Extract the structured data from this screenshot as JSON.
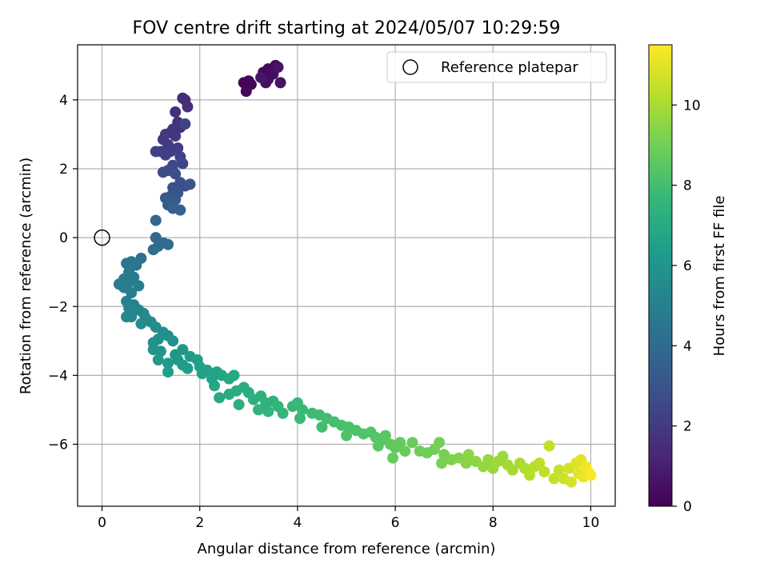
{
  "chart_data": {
    "type": "scatter",
    "title": "FOV centre drift starting at 2024/05/07 10:29:59",
    "xlabel": "Angular distance from reference (arcmin)",
    "ylabel": "Rotation from reference (arcmin)",
    "xlim": [
      -0.5,
      10.5
    ],
    "ylim": [
      -7.8,
      5.6
    ],
    "xticks": [
      0,
      2,
      4,
      6,
      8,
      10
    ],
    "yticks": [
      -6,
      -4,
      -2,
      0,
      2,
      4
    ],
    "grid": true,
    "legend": {
      "position": "top-right",
      "entries": [
        {
          "label": "Reference platepar",
          "marker": "hollow-circle"
        }
      ]
    },
    "reference_point": {
      "x": 0,
      "y": 0
    },
    "colorbar": {
      "label": "Hours from first FF file",
      "range": [
        0,
        11.5
      ],
      "ticks": [
        0,
        2,
        4,
        6,
        8,
        10
      ],
      "colormap": "viridis",
      "colors": [
        "#440154",
        "#482878",
        "#3e4989",
        "#31688e",
        "#26828e",
        "#1f9e89",
        "#35b779",
        "#6ece58",
        "#b5de2b",
        "#fde725"
      ]
    },
    "series": [
      {
        "points": [
          [
            2.9,
            4.5,
            0.05
          ],
          [
            3.0,
            4.55,
            0.1
          ],
          [
            3.05,
            4.45,
            0.15
          ],
          [
            2.95,
            4.25,
            0.2
          ],
          [
            3.3,
            4.8,
            0.25
          ],
          [
            3.4,
            4.9,
            0.3
          ],
          [
            3.55,
            5.0,
            0.35
          ],
          [
            3.5,
            4.75,
            0.4
          ],
          [
            3.4,
            4.6,
            0.45
          ],
          [
            3.35,
            4.5,
            0.5
          ],
          [
            3.65,
            4.5,
            0.55
          ],
          [
            3.6,
            4.95,
            0.6
          ],
          [
            3.25,
            4.65,
            0.65
          ],
          [
            1.65,
            4.05,
            1.4
          ],
          [
            1.7,
            4.0,
            1.45
          ],
          [
            1.75,
            3.8,
            1.5
          ],
          [
            1.5,
            3.65,
            1.6
          ],
          [
            1.55,
            3.35,
            1.65
          ],
          [
            1.6,
            3.2,
            1.7
          ],
          [
            1.45,
            3.15,
            1.75
          ],
          [
            1.4,
            3.05,
            1.8
          ],
          [
            1.3,
            3.0,
            1.85
          ],
          [
            1.5,
            2.95,
            1.9
          ],
          [
            1.25,
            2.85,
            1.95
          ],
          [
            1.35,
            2.7,
            2.0
          ],
          [
            1.55,
            2.6,
            2.05
          ],
          [
            1.4,
            2.5,
            2.1
          ],
          [
            1.2,
            2.5,
            2.15
          ],
          [
            1.1,
            2.5,
            2.2
          ],
          [
            1.3,
            2.4,
            2.25
          ],
          [
            1.6,
            2.35,
            2.3
          ],
          [
            1.7,
            3.3,
            2.35
          ],
          [
            1.65,
            2.15,
            2.4
          ],
          [
            1.45,
            2.1,
            2.5
          ],
          [
            1.35,
            1.95,
            2.6
          ],
          [
            1.25,
            1.9,
            2.7
          ],
          [
            1.5,
            1.85,
            2.75
          ],
          [
            1.6,
            1.6,
            2.8
          ],
          [
            1.7,
            1.5,
            2.85
          ],
          [
            1.45,
            1.45,
            2.9
          ],
          [
            1.8,
            1.55,
            2.95
          ],
          [
            1.55,
            1.3,
            3.0
          ],
          [
            1.4,
            1.2,
            3.1
          ],
          [
            1.3,
            1.15,
            3.2
          ],
          [
            1.5,
            1.1,
            3.3
          ],
          [
            1.35,
            0.95,
            3.4
          ],
          [
            1.45,
            0.85,
            3.5
          ],
          [
            1.6,
            0.8,
            3.6
          ],
          [
            1.1,
            0.5,
            3.75
          ],
          [
            1.1,
            0.0,
            3.9
          ],
          [
            1.25,
            -0.15,
            4.0
          ],
          [
            1.35,
            -0.2,
            4.05
          ],
          [
            1.15,
            -0.25,
            4.1
          ],
          [
            1.05,
            -0.35,
            4.15
          ],
          [
            0.8,
            -0.6,
            4.3
          ],
          [
            0.6,
            -0.7,
            4.4
          ],
          [
            0.5,
            -0.75,
            4.45
          ],
          [
            0.7,
            -0.8,
            4.5
          ],
          [
            0.55,
            -1.0,
            4.6
          ],
          [
            0.65,
            -1.15,
            4.7
          ],
          [
            0.45,
            -1.2,
            4.75
          ],
          [
            0.55,
            -1.3,
            4.8
          ],
          [
            0.35,
            -1.35,
            4.85
          ],
          [
            0.45,
            -1.45,
            4.9
          ],
          [
            0.75,
            -1.4,
            4.95
          ],
          [
            0.6,
            -1.6,
            5.0
          ],
          [
            0.5,
            -1.85,
            5.1
          ],
          [
            0.65,
            -1.95,
            5.15
          ],
          [
            0.55,
            -2.05,
            5.2
          ],
          [
            0.75,
            -2.1,
            5.25
          ],
          [
            0.85,
            -2.2,
            5.3
          ],
          [
            0.6,
            -2.3,
            5.35
          ],
          [
            0.5,
            -2.3,
            5.4
          ],
          [
            0.9,
            -2.35,
            5.45
          ],
          [
            1.0,
            -2.45,
            5.5
          ],
          [
            0.8,
            -2.5,
            5.55
          ],
          [
            1.1,
            -2.6,
            5.6
          ],
          [
            1.25,
            -2.75,
            5.65
          ],
          [
            1.35,
            -2.85,
            5.7
          ],
          [
            1.15,
            -2.95,
            5.75
          ],
          [
            1.45,
            -3.0,
            5.8
          ],
          [
            1.05,
            -3.05,
            5.85
          ],
          [
            1.05,
            -3.25,
            5.9
          ],
          [
            1.2,
            -3.3,
            5.95
          ],
          [
            1.5,
            -3.4,
            6.0
          ],
          [
            1.65,
            -3.25,
            6.05
          ],
          [
            1.55,
            -3.55,
            6.1
          ],
          [
            1.15,
            -3.55,
            6.15
          ],
          [
            1.35,
            -3.65,
            6.2
          ],
          [
            1.8,
            -3.45,
            6.25
          ],
          [
            1.65,
            -3.7,
            6.3
          ],
          [
            1.75,
            -3.8,
            6.35
          ],
          [
            1.35,
            -3.9,
            6.4
          ],
          [
            1.95,
            -3.55,
            6.45
          ],
          [
            2.0,
            -3.75,
            6.5
          ],
          [
            2.05,
            -3.95,
            6.55
          ],
          [
            2.15,
            -3.85,
            6.6
          ],
          [
            2.25,
            -4.1,
            6.65
          ],
          [
            2.35,
            -3.9,
            6.7
          ],
          [
            2.45,
            -4.0,
            6.75
          ],
          [
            2.3,
            -4.3,
            6.8
          ],
          [
            2.6,
            -4.1,
            6.85
          ],
          [
            2.7,
            -4.0,
            6.9
          ],
          [
            2.4,
            -4.65,
            6.95
          ],
          [
            2.6,
            -4.55,
            7.0
          ],
          [
            2.75,
            -4.45,
            7.05
          ],
          [
            2.9,
            -4.35,
            7.1
          ],
          [
            3.0,
            -4.5,
            7.15
          ],
          [
            2.8,
            -4.85,
            7.2
          ],
          [
            3.1,
            -4.7,
            7.25
          ],
          [
            3.25,
            -4.6,
            7.3
          ],
          [
            3.35,
            -4.8,
            7.35
          ],
          [
            3.5,
            -4.75,
            7.4
          ],
          [
            3.2,
            -5.0,
            7.45
          ],
          [
            3.4,
            -5.05,
            7.5
          ],
          [
            3.6,
            -4.9,
            7.55
          ],
          [
            3.7,
            -5.1,
            7.6
          ],
          [
            3.9,
            -4.9,
            7.65
          ],
          [
            4.0,
            -4.8,
            7.7
          ],
          [
            4.1,
            -5.0,
            7.75
          ],
          [
            4.05,
            -5.25,
            7.8
          ],
          [
            4.3,
            -5.1,
            7.85
          ],
          [
            4.45,
            -5.15,
            7.9
          ],
          [
            4.6,
            -5.25,
            7.95
          ],
          [
            4.5,
            -5.5,
            8.0
          ],
          [
            4.75,
            -5.35,
            8.05
          ],
          [
            4.9,
            -5.45,
            8.1
          ],
          [
            5.05,
            -5.5,
            8.15
          ],
          [
            5.2,
            -5.6,
            8.2
          ],
          [
            5.0,
            -5.75,
            8.25
          ],
          [
            5.35,
            -5.7,
            8.3
          ],
          [
            5.5,
            -5.65,
            8.35
          ],
          [
            5.6,
            -5.8,
            8.4
          ],
          [
            5.7,
            -5.9,
            8.45
          ],
          [
            5.8,
            -5.75,
            8.5
          ],
          [
            5.65,
            -6.05,
            8.55
          ],
          [
            5.9,
            -6.0,
            8.6
          ],
          [
            6.0,
            -6.1,
            8.65
          ],
          [
            6.1,
            -5.95,
            8.7
          ],
          [
            5.95,
            -6.4,
            8.75
          ],
          [
            6.2,
            -6.2,
            8.8
          ],
          [
            6.35,
            -5.95,
            8.85
          ],
          [
            6.5,
            -6.2,
            8.9
          ],
          [
            6.65,
            -6.25,
            8.95
          ],
          [
            6.8,
            -6.15,
            9.0
          ],
          [
            6.9,
            -5.95,
            9.05
          ],
          [
            7.0,
            -6.3,
            9.1
          ],
          [
            6.95,
            -6.55,
            9.15
          ],
          [
            7.15,
            -6.45,
            9.2
          ],
          [
            7.3,
            -6.4,
            9.3
          ],
          [
            7.45,
            -6.55,
            9.4
          ],
          [
            7.5,
            -6.3,
            9.45
          ],
          [
            7.65,
            -6.5,
            9.5
          ],
          [
            7.8,
            -6.65,
            9.6
          ],
          [
            7.9,
            -6.45,
            9.65
          ],
          [
            8.0,
            -6.7,
            9.7
          ],
          [
            8.1,
            -6.5,
            9.75
          ],
          [
            8.2,
            -6.35,
            9.8
          ],
          [
            8.3,
            -6.6,
            9.9
          ],
          [
            8.4,
            -6.75,
            9.95
          ],
          [
            8.55,
            -6.55,
            10.0
          ],
          [
            8.65,
            -6.7,
            10.1
          ],
          [
            8.75,
            -6.9,
            10.2
          ],
          [
            8.85,
            -6.65,
            10.25
          ],
          [
            8.95,
            -6.55,
            10.3
          ],
          [
            9.05,
            -6.8,
            10.4
          ],
          [
            9.15,
            -6.05,
            10.45
          ],
          [
            9.25,
            -7.0,
            10.5
          ],
          [
            9.35,
            -6.75,
            10.55
          ],
          [
            9.45,
            -7.0,
            10.65
          ],
          [
            9.55,
            -6.7,
            10.75
          ],
          [
            9.6,
            -7.1,
            10.8
          ],
          [
            9.7,
            -6.55,
            10.9
          ],
          [
            9.75,
            -6.85,
            11.0
          ],
          [
            9.8,
            -6.45,
            11.05
          ],
          [
            9.85,
            -6.95,
            11.15
          ],
          [
            9.9,
            -6.65,
            11.25
          ],
          [
            9.95,
            -6.8,
            11.35
          ],
          [
            10.0,
            -6.9,
            11.45
          ]
        ]
      }
    ]
  }
}
